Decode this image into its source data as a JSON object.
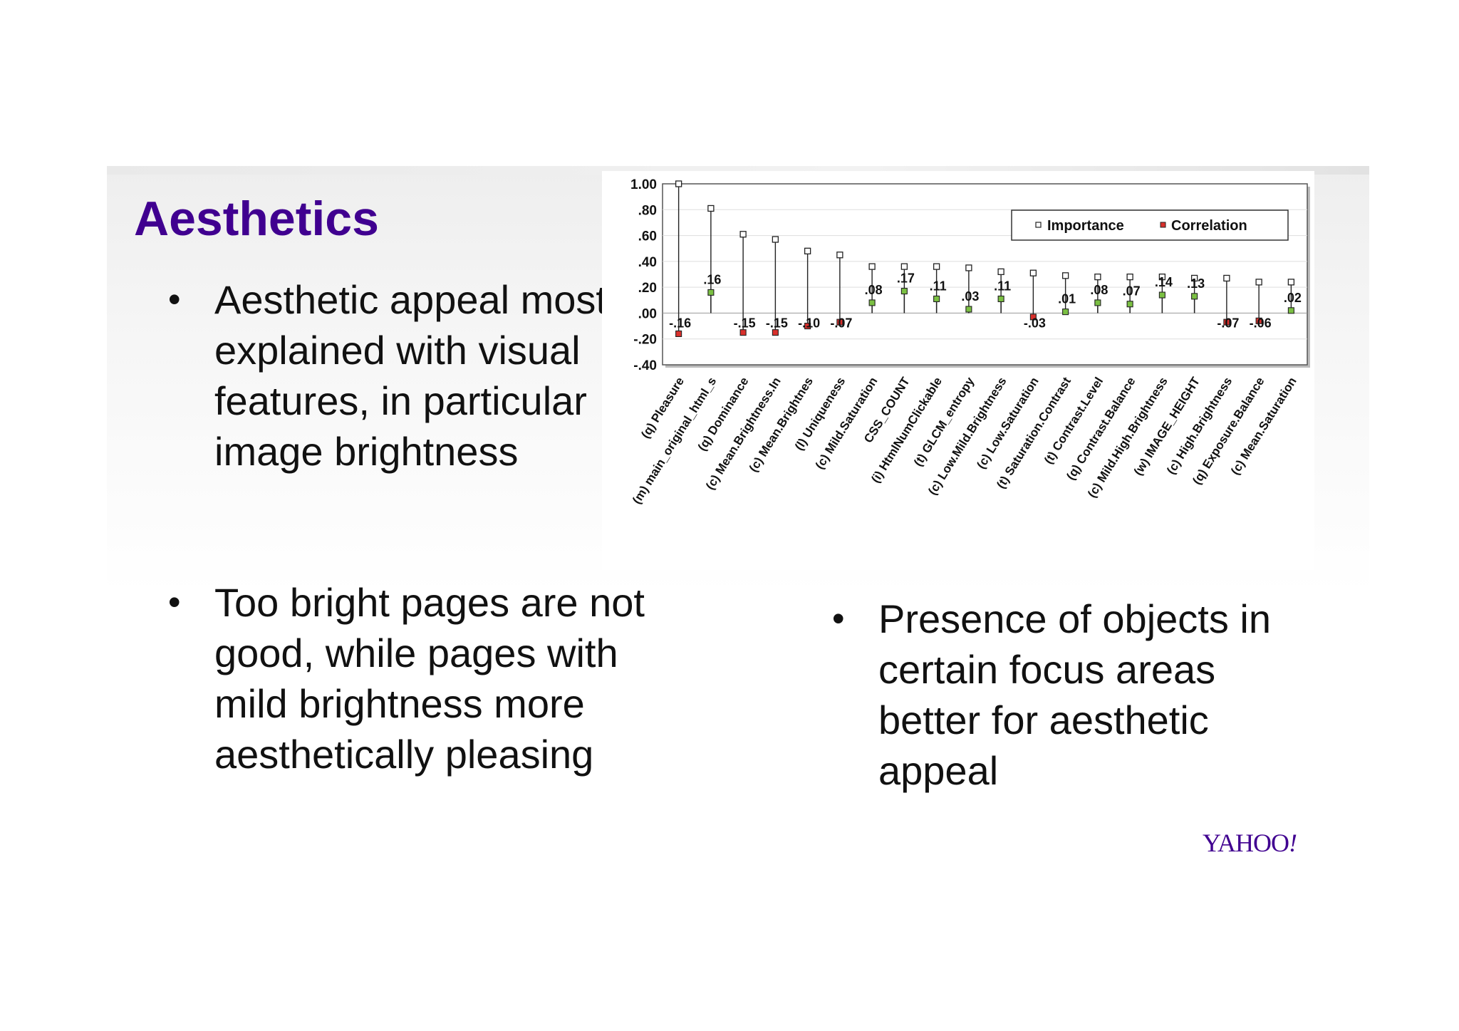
{
  "title": "Aesthetics",
  "bullets": [
    "Aesthetic appeal mostly explained with visual features, in particular image brightness",
    "Too bright pages are not good, while pages with mild brightness more aesthetically pleasing",
    "Presence of objects in certain focus areas better for aesthetic appeal"
  ],
  "bullet_symbol": "•",
  "logo": {
    "text": "YAHOO",
    "mark": "!"
  },
  "colors": {
    "title": "#400090",
    "importance": "#ffffff",
    "correlation_negative": "#d9302c",
    "correlation_positive": "#7bc043"
  },
  "chart_data": {
    "type": "scatter",
    "categories": [
      "(q) Pleasure",
      "(m) main_original_html_s",
      "(q) Dominance",
      "(c) Mean.Brightness.In",
      "(c) Mean.Brightnes",
      "(l) Uniqueness",
      "(c) Mild.Saturation",
      "CSS_COUNT",
      "(i) HtmlNumClickable",
      "(t) GLCM_entropy",
      "(c) Low.Mild.Brightness",
      "(c) Low.Saturation",
      "(t) Saturation.Contrast",
      "(t) Contrast.Level",
      "(q) Contrast.Balance",
      "(c) Mild.High.Brightness",
      "(w) IMAGE_HEIGHT",
      "(c) High.Brightness",
      "(q) Exposure.Balance",
      "(c) Mean.Saturation"
    ],
    "series": [
      {
        "name": "Importance",
        "values": [
          1.0,
          0.81,
          0.61,
          0.57,
          0.48,
          0.45,
          0.36,
          0.36,
          0.36,
          0.35,
          0.32,
          0.31,
          0.29,
          0.28,
          0.28,
          0.28,
          0.27,
          0.27,
          0.24,
          0.24
        ]
      },
      {
        "name": "Correlation",
        "values": [
          -0.16,
          0.16,
          -0.15,
          -0.15,
          -0.1,
          -0.07,
          0.08,
          0.17,
          0.11,
          0.03,
          0.11,
          -0.03,
          0.01,
          0.08,
          0.07,
          0.14,
          0.13,
          -0.07,
          -0.06,
          0.02
        ],
        "labels": [
          "-.16",
          ".16",
          "-.15",
          "-.15",
          "-.10",
          "-.07",
          ".08",
          ".17",
          ".11",
          ".03",
          ".11",
          "-.03",
          ".01",
          ".08",
          ".07",
          ".14",
          ".13",
          "-.07",
          "-.06",
          ".02"
        ]
      }
    ],
    "yticks": [
      "1.00",
      ".80",
      ".60",
      ".40",
      ".20",
      ".00",
      "-.20",
      "-.40"
    ],
    "ytick_values": [
      1.0,
      0.8,
      0.6,
      0.4,
      0.2,
      0.0,
      -0.2,
      -0.4
    ],
    "ylim": [
      -0.4,
      1.0
    ],
    "grid": true,
    "legend": "top-right",
    "title": "",
    "xlabel": "",
    "ylabel": ""
  }
}
